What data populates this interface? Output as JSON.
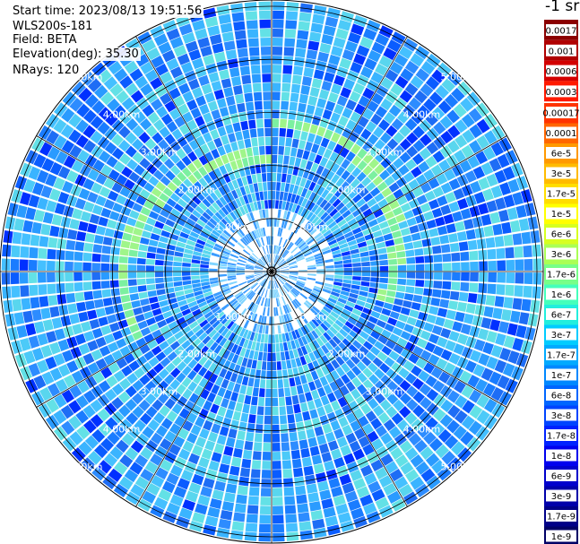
{
  "header": {
    "start_time": "Start time: 2023/08/13 19:51:56",
    "device": "WLS200s-181",
    "field": "Field: BETA",
    "elevation": "Elevation(deg): 35.30",
    "nrays": "NRays: 120"
  },
  "colorbar": {
    "unit_label": "-1 sr",
    "top_ticks": [
      "0.0017",
      "0.001",
      "0.0006",
      "0.0003"
    ],
    "top_colors": [
      "#8b0000",
      "#b00000",
      "#d30000",
      "#ff1a00"
    ],
    "main_ticks": [
      "0.00017",
      "0.0001",
      "6e-5",
      "3e-5",
      "1.7e-5",
      "1e-5",
      "6e-6",
      "3e-6",
      "1.7e-6",
      "1e-6",
      "6e-7",
      "3e-7",
      "1.7e-7",
      "1e-7",
      "6e-8",
      "3e-8",
      "1.7e-8",
      "1e-8",
      "6e-9",
      "3e-9",
      "1.7e-9",
      "1e-9"
    ],
    "main_colors": [
      "#ff3300",
      "#ff6600",
      "#ff9900",
      "#ffbb00",
      "#ffdd00",
      "#ffff00",
      "#d7ff20",
      "#aaff55",
      "#77ff88",
      "#44ffbb",
      "#22eedd",
      "#00ccff",
      "#00aaff",
      "#0088ff",
      "#0066ff",
      "#0044ff",
      "#0022ff",
      "#0000ee",
      "#0000cc",
      "#0000aa",
      "#000088",
      "#000066"
    ]
  },
  "ring_labels": [
    "1.00km",
    "2.00km",
    "3.00km",
    "4.00km",
    "5.00km"
  ],
  "chart_data": {
    "type": "heatmap",
    "projection": "polar PPI",
    "field": "BETA",
    "range_rings_km": [
      1,
      2,
      3,
      4,
      5
    ],
    "n_rays": 120,
    "max_range_km": 5.1,
    "features": {
      "enhanced_ring_km": [
        2.3,
        3.6
      ],
      "enhanced_ring_value": "1e-6",
      "background_value": "3e-7"
    }
  }
}
